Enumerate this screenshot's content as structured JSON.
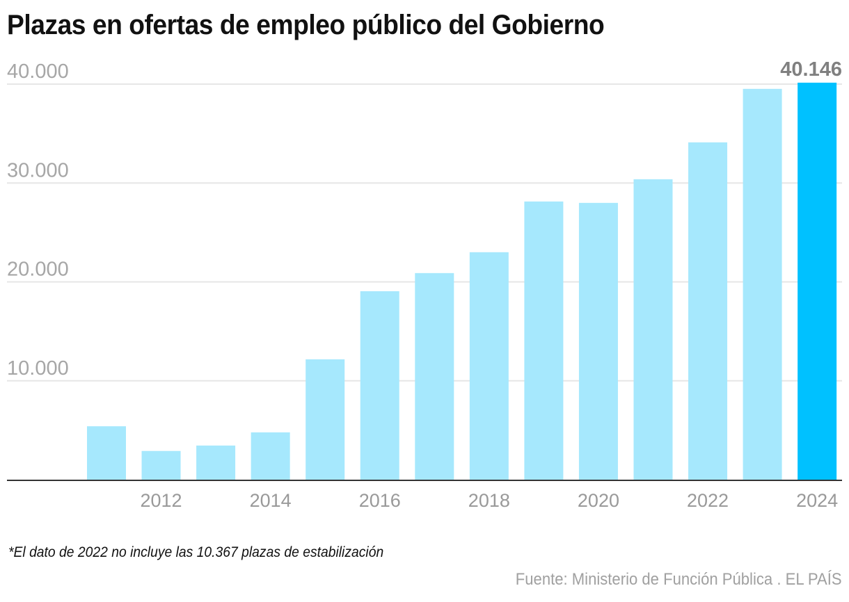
{
  "chart_data": {
    "type": "bar",
    "title": "Plazas en ofertas de empleo público del Gobierno",
    "xlabel": "",
    "ylabel": "",
    "categories": [
      "2011",
      "2012",
      "2013",
      "2014",
      "2015",
      "2016",
      "2017",
      "2018",
      "2019",
      "2020",
      "2021",
      "2022",
      "2023",
      "2024"
    ],
    "values": [
      5400,
      2900,
      3450,
      4780,
      12170,
      19060,
      20890,
      23000,
      28130,
      27990,
      30380,
      34110,
      39520,
      40146
    ],
    "ylim": [
      0,
      40000
    ],
    "yticks": [
      10000,
      20000,
      30000,
      40000
    ],
    "ytick_labels": [
      "10.000",
      "20.000",
      "30.000",
      "40.000"
    ],
    "xtick_labels": [
      {
        "category": "2012",
        "label": "2012"
      },
      {
        "category": "2014",
        "label": "2014"
      },
      {
        "category": "2016",
        "label": "2016"
      },
      {
        "category": "2018",
        "label": "2018"
      },
      {
        "category": "2020",
        "label": "2020"
      },
      {
        "category": "2022",
        "label": "2022"
      },
      {
        "category": "2024",
        "label": "2024"
      }
    ],
    "highlight": {
      "category": "2024",
      "label": "40.146"
    },
    "colors": {
      "bar": "#a6e8fd",
      "highlight": "#00c1ff",
      "grid": "#e6e6e6",
      "baseline": "#333333"
    },
    "grid": true,
    "legend": "none"
  },
  "footnote": "*El dato de 2022 no incluye las 10.367 plazas de estabilización",
  "source": "Fuente: Ministerio de Función Pública . EL PAÍS"
}
